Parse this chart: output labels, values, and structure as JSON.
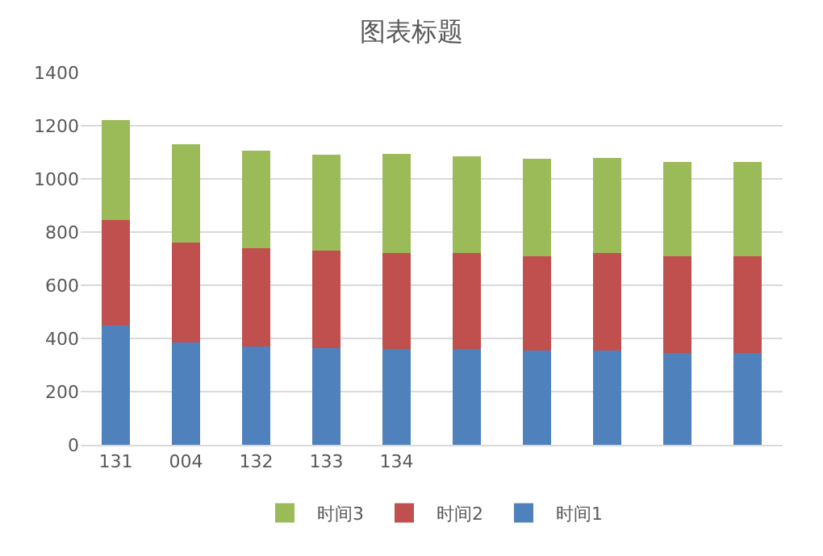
{
  "chart_data": {
    "type": "bar",
    "title": "图表标题",
    "stacked": true,
    "categories": [
      "131",
      "004",
      "132",
      "133",
      "134",
      null,
      null,
      null,
      null,
      null
    ],
    "series": [
      {
        "name": "时间1",
        "color": "#4f81bd",
        "values": [
          450,
          385,
          370,
          365,
          360,
          360,
          355,
          355,
          345,
          345
        ]
      },
      {
        "name": "时间2",
        "color": "#c0504d",
        "values": [
          395,
          375,
          370,
          365,
          360,
          360,
          355,
          365,
          365,
          365
        ]
      },
      {
        "name": "时间3",
        "color": "#9bbb59",
        "values": [
          375,
          370,
          365,
          360,
          375,
          365,
          365,
          360,
          355,
          355
        ]
      }
    ],
    "ylim": [
      0,
      1400
    ],
    "yticks": [
      0,
      200,
      400,
      600,
      800,
      1000,
      1200,
      1400
    ],
    "grid": "y",
    "legend": "bottom"
  }
}
